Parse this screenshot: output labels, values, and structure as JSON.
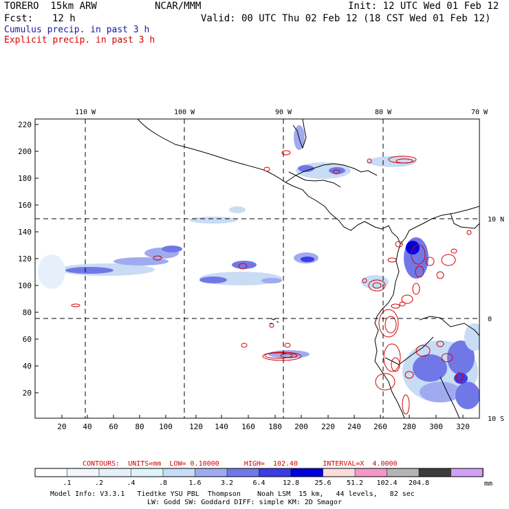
{
  "header": {
    "model": "TORERO  15km ARW",
    "org": "NCAR/MMM",
    "init": "Init: 12 UTC Wed 01 Feb 12",
    "fcst_label": "Fcst:",
    "fcst_value": "12 h",
    "valid": "Valid: 00 UTC Thu 02 Feb 12 (18 CST Wed 01 Feb 12)"
  },
  "legend_titles": {
    "cumulus": "Cumulus precip. in past 3 h",
    "explicit": "Explicit precip. in past 3 h"
  },
  "map": {
    "top_labels": [
      "110 W",
      "100 W",
      "90 W",
      "80 W",
      "70 W"
    ],
    "right_labels": [
      "10 N",
      "0",
      "10 S"
    ],
    "y_ticks": [
      "220",
      "200",
      "180",
      "160",
      "140",
      "120",
      "100",
      "80",
      "60",
      "40",
      "20"
    ],
    "x_ticks": [
      "20",
      "40",
      "60",
      "80",
      "100",
      "120",
      "140",
      "160",
      "180",
      "200",
      "220",
      "240",
      "260",
      "280",
      "300",
      "320"
    ]
  },
  "contours_info": {
    "label": "CONTOURS:  UNITS=mm  LOW= 0.10000      HIGH=  102.40      INTERVAL=X  4.0000"
  },
  "colorbar": {
    "colors": [
      "#ffffff",
      "#f2f7fd",
      "#e6f0fa",
      "#dcf5fa",
      "#c8dcf5",
      "#a0aaf0",
      "#7078e8",
      "#3c3ce8",
      "#0000dc",
      "#fadcdc",
      "#f596c8",
      "#b4b4b4",
      "#3c3c3c",
      "#d2a0f5"
    ],
    "labels": [
      ".1",
      ".2",
      ".4",
      ".8",
      "1.6",
      "3.2",
      "6.4",
      "12.8",
      "25.6",
      "51.2",
      "102.4",
      "204.8"
    ],
    "units": "mm"
  },
  "footer": {
    "line1": "Model Info: V3.3.1   Tiedtke YSU PBL  Thompson    Noah LSM  15 km,   44 levels,   82 sec",
    "line2": "LW: Godd SW: Goddard DIFF: simple KM: 2D Smagor"
  },
  "colors": {
    "cumulus_title": "#1818a8",
    "explicit_title": "#d40000",
    "contour": "#d40000",
    "coast": "#000000"
  }
}
